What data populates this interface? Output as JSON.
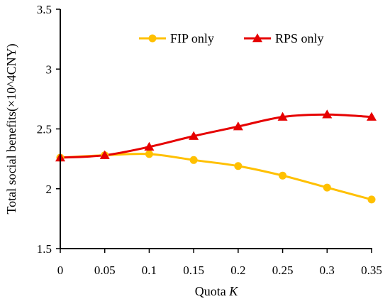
{
  "chart_data": {
    "type": "line",
    "title": "",
    "xlabel_prefix": "Quota ",
    "xlabel_var": "K",
    "ylabel": "Total social benefits(×10^4CNY)",
    "xlim": [
      0,
      0.35
    ],
    "ylim": [
      1.5,
      3.5
    ],
    "x_ticks": [
      "0",
      "0.05",
      "0.1",
      "0.15",
      "0.2",
      "0.25",
      "0.3",
      "0.35"
    ],
    "y_ticks": [
      "1.5",
      "2",
      "2.5",
      "3",
      "3.5"
    ],
    "x": [
      0,
      0.05,
      0.1,
      0.15,
      0.2,
      0.25,
      0.3,
      0.35
    ],
    "grid": false,
    "legend_position": "top-right",
    "series": [
      {
        "name": "FIP only",
        "color": "#FFC000",
        "marker": "circle",
        "values": [
          2.26,
          2.28,
          2.29,
          2.24,
          2.19,
          2.11,
          2.01,
          1.91
        ]
      },
      {
        "name": "RPS only",
        "color": "#E60000",
        "marker": "triangle",
        "values": [
          2.26,
          2.28,
          2.35,
          2.44,
          2.52,
          2.6,
          2.62,
          2.6
        ]
      }
    ]
  }
}
